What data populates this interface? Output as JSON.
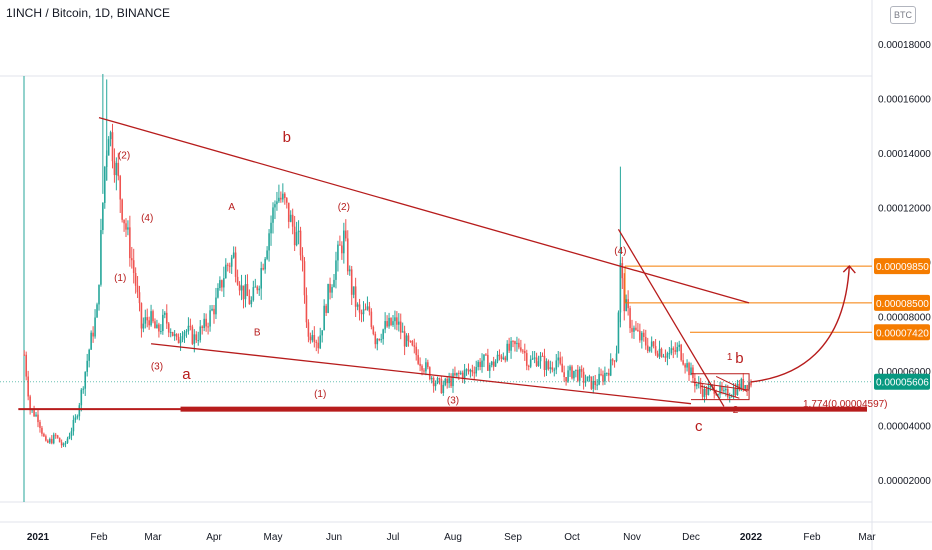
{
  "header": {
    "symbol_title": "1INCH / Bitcoin, 1D, BINANCE",
    "currency": "BTC"
  },
  "chart_data": {
    "type": "candlestick",
    "price_axis": {
      "ticks": [
        "0.00018000",
        "0.00016000",
        "0.00014000",
        "0.00012000",
        "0.00010000",
        "0.00008000",
        "0.00006000",
        "0.00004000",
        "0.00002000"
      ],
      "tick_values": [
        0.00018,
        0.00016,
        0.00014,
        0.00012,
        0.0001,
        8e-05,
        6e-05,
        4e-05,
        2e-05
      ],
      "range": [
        9.2e-06,
        0.0001928
      ]
    },
    "time_axis": {
      "labels": [
        "2021",
        "Feb",
        "Mar",
        "Apr",
        "May",
        "Jun",
        "Jul",
        "Aug",
        "Sep",
        "Oct",
        "Nov",
        "Dec",
        "2022",
        "Feb",
        "Mar"
      ],
      "dates": [
        "2021-01-01",
        "2021-02-01",
        "2021-03-01",
        "2021-04-01",
        "2021-05-01",
        "2021-06-01",
        "2021-07-01",
        "2021-08-01",
        "2021-09-01",
        "2021-10-01",
        "2021-11-01",
        "2021-12-01",
        "2022-01-01",
        "2022-02-01",
        "2022-03-01"
      ]
    },
    "price_path": [
      [
        "2020-12-25",
        6.6e-05
      ],
      [
        "2020-12-28",
        4.6e-05
      ],
      [
        "2021-01-01",
        4.3e-05
      ],
      [
        "2021-01-05",
        3.3e-05
      ],
      [
        "2021-01-10",
        3.6e-05
      ],
      [
        "2021-01-14",
        3.2e-05
      ],
      [
        "2021-01-20",
        4.2e-05
      ],
      [
        "2021-01-23",
        5.2e-05
      ],
      [
        "2021-01-27",
        6.8e-05
      ],
      [
        "2021-01-31",
        8.2e-05
      ],
      [
        "2021-02-04",
        0.000135
      ],
      [
        "2021-02-06",
        0.00015
      ],
      [
        "2021-02-09",
        0.000138
      ],
      [
        "2021-02-13",
        0.00012
      ],
      [
        "2021-02-17",
        0.000105
      ],
      [
        "2021-02-20",
        9.2e-05
      ],
      [
        "2021-02-23",
        7.6e-05
      ],
      [
        "2021-02-27",
        8e-05
      ],
      [
        "2021-03-03",
        7.4e-05
      ],
      [
        "2021-03-07",
        7.9e-05
      ],
      [
        "2021-03-10",
        7.6e-05
      ],
      [
        "2021-03-13",
        7e-05
      ],
      [
        "2021-03-16",
        7.6e-05
      ],
      [
        "2021-03-22",
        7.2e-05
      ],
      [
        "2021-03-27",
        7.6e-05
      ],
      [
        "2021-04-02",
        8.5e-05
      ],
      [
        "2021-04-07",
        9.8e-05
      ],
      [
        "2021-04-11",
        0.000102
      ],
      [
        "2021-04-15",
        9e-05
      ],
      [
        "2021-04-20",
        8.5e-05
      ],
      [
        "2021-04-24",
        9.4e-05
      ],
      [
        "2021-04-28",
        0.000108
      ],
      [
        "2021-05-03",
        0.000125
      ],
      [
        "2021-05-07",
        0.000121
      ],
      [
        "2021-05-11",
        0.000113
      ],
      [
        "2021-05-15",
        0.000105
      ],
      [
        "2021-05-19",
        7.2e-05
      ],
      [
        "2021-05-21",
        7.6e-05
      ],
      [
        "2021-05-24",
        7e-05
      ],
      [
        "2021-05-28",
        8.5e-05
      ],
      [
        "2021-06-02",
        0.0001
      ],
      [
        "2021-06-06",
        0.000109
      ],
      [
        "2021-06-10",
        9e-05
      ],
      [
        "2021-06-14",
        8e-05
      ],
      [
        "2021-06-19",
        8.2e-05
      ],
      [
        "2021-06-22",
        7.2e-05
      ],
      [
        "2021-06-27",
        7.6e-05
      ],
      [
        "2021-07-03",
        7.8e-05
      ],
      [
        "2021-07-08",
        7e-05
      ],
      [
        "2021-07-13",
        6.6e-05
      ],
      [
        "2021-07-18",
        6.1e-05
      ],
      [
        "2021-07-22",
        5.7e-05
      ],
      [
        "2021-07-26",
        5.4e-05
      ],
      [
        "2021-07-30",
        5.6e-05
      ],
      [
        "2021-08-05",
        5.9e-05
      ],
      [
        "2021-08-10",
        6e-05
      ],
      [
        "2021-08-16",
        6.4e-05
      ],
      [
        "2021-08-21",
        6.2e-05
      ],
      [
        "2021-08-26",
        6.6e-05
      ],
      [
        "2021-08-31",
        6.8e-05
      ],
      [
        "2021-09-05",
        7e-05
      ],
      [
        "2021-09-09",
        6.3e-05
      ],
      [
        "2021-09-14",
        6.5e-05
      ],
      [
        "2021-09-19",
        6.1e-05
      ],
      [
        "2021-09-23",
        6.4e-05
      ],
      [
        "2021-09-27",
        5.8e-05
      ],
      [
        "2021-10-02",
        6e-05
      ],
      [
        "2021-10-07",
        5.7e-05
      ],
      [
        "2021-10-12",
        5.5e-05
      ],
      [
        "2021-10-17",
        5.8e-05
      ],
      [
        "2021-10-21",
        6.2e-05
      ],
      [
        "2021-10-24",
        6.8e-05
      ],
      [
        "2021-10-26",
        9.8e-05
      ],
      [
        "2021-10-28",
        8.5e-05
      ],
      [
        "2021-11-01",
        7.6e-05
      ],
      [
        "2021-11-05",
        7.2e-05
      ],
      [
        "2021-11-10",
        6.9e-05
      ],
      [
        "2021-11-15",
        6.8e-05
      ],
      [
        "2021-11-20",
        6.6e-05
      ],
      [
        "2021-11-25",
        6.8e-05
      ],
      [
        "2021-11-29",
        6.2e-05
      ],
      [
        "2021-12-03",
        5.6e-05
      ],
      [
        "2021-12-08",
        5.2e-05
      ],
      [
        "2021-12-13",
        5.4e-05
      ],
      [
        "2021-12-18",
        5.1e-05
      ],
      [
        "2021-12-23",
        5.3e-05
      ],
      [
        "2021-12-27",
        5.5e-05
      ],
      [
        "2022-01-01",
        5.6e-05
      ]
    ],
    "horizontal_levels": [
      {
        "price": 9.85e-05,
        "label": "0.00009850",
        "color": "#f57c00"
      },
      {
        "price": 8.5e-05,
        "label": "0.00008500",
        "color": "#f57c00"
      },
      {
        "price": 7.42e-05,
        "label": "0.00007420",
        "color": "#f57c00"
      },
      {
        "price": 5.606e-05,
        "label": "0.00005606",
        "color": "#089981"
      }
    ],
    "current_price": "0.00005606",
    "fib_label": "1.774(0.00004597)",
    "trendlines": [
      {
        "from": [
          "2021-02-01",
          0.000153
        ],
        "to": [
          "2021-12-31",
          8.5e-05
        ]
      },
      {
        "from": [
          "2021-02-28",
          7e-05
        ],
        "to": [
          "2021-12-01",
          4.8e-05
        ]
      },
      {
        "from": [
          "2021-10-25",
          0.000112
        ],
        "to": [
          "2021-12-18",
          4.7e-05
        ]
      }
    ],
    "support_line": {
      "price": 4.6e-05,
      "from": "2020-12-22",
      "to": "2022-03-01"
    },
    "wave_labels": {
      "small": [
        {
          "t": "(2)",
          "d": "2021-02-14",
          "p": 0.000138
        },
        {
          "t": "(4)",
          "d": "2021-02-26",
          "p": 0.000115
        },
        {
          "t": "(1)",
          "d": "2021-02-12",
          "p": 9.3e-05
        },
        {
          "t": "(3)",
          "d": "2021-03-03",
          "p": 6.05e-05
        },
        {
          "t": "A",
          "d": "2021-04-10",
          "p": 0.000119
        },
        {
          "t": "B",
          "d": "2021-04-23",
          "p": 7.3e-05
        },
        {
          "t": "(2)",
          "d": "2021-06-06",
          "p": 0.000119
        },
        {
          "t": "(1)",
          "d": "2021-05-25",
          "p": 5.05e-05
        },
        {
          "t": "(3)",
          "d": "2021-08-01",
          "p": 4.8e-05
        },
        {
          "t": "(4)",
          "d": "2021-10-26",
          "p": 0.000103
        },
        {
          "t": "1",
          "d": "2021-12-21",
          "p": 6.4e-05
        },
        {
          "t": "2",
          "d": "2021-12-24",
          "p": 4.45e-05
        }
      ],
      "big": [
        {
          "t": "b",
          "d": "2021-05-08",
          "p": 0.000144
        },
        {
          "t": "a",
          "d": "2021-03-18",
          "p": 5.7e-05
        },
        {
          "t": "c",
          "d": "2021-12-05",
          "p": 3.8e-05
        },
        {
          "t": "b",
          "d": "2021-12-26",
          "p": 6.3e-05
        }
      ]
    }
  }
}
